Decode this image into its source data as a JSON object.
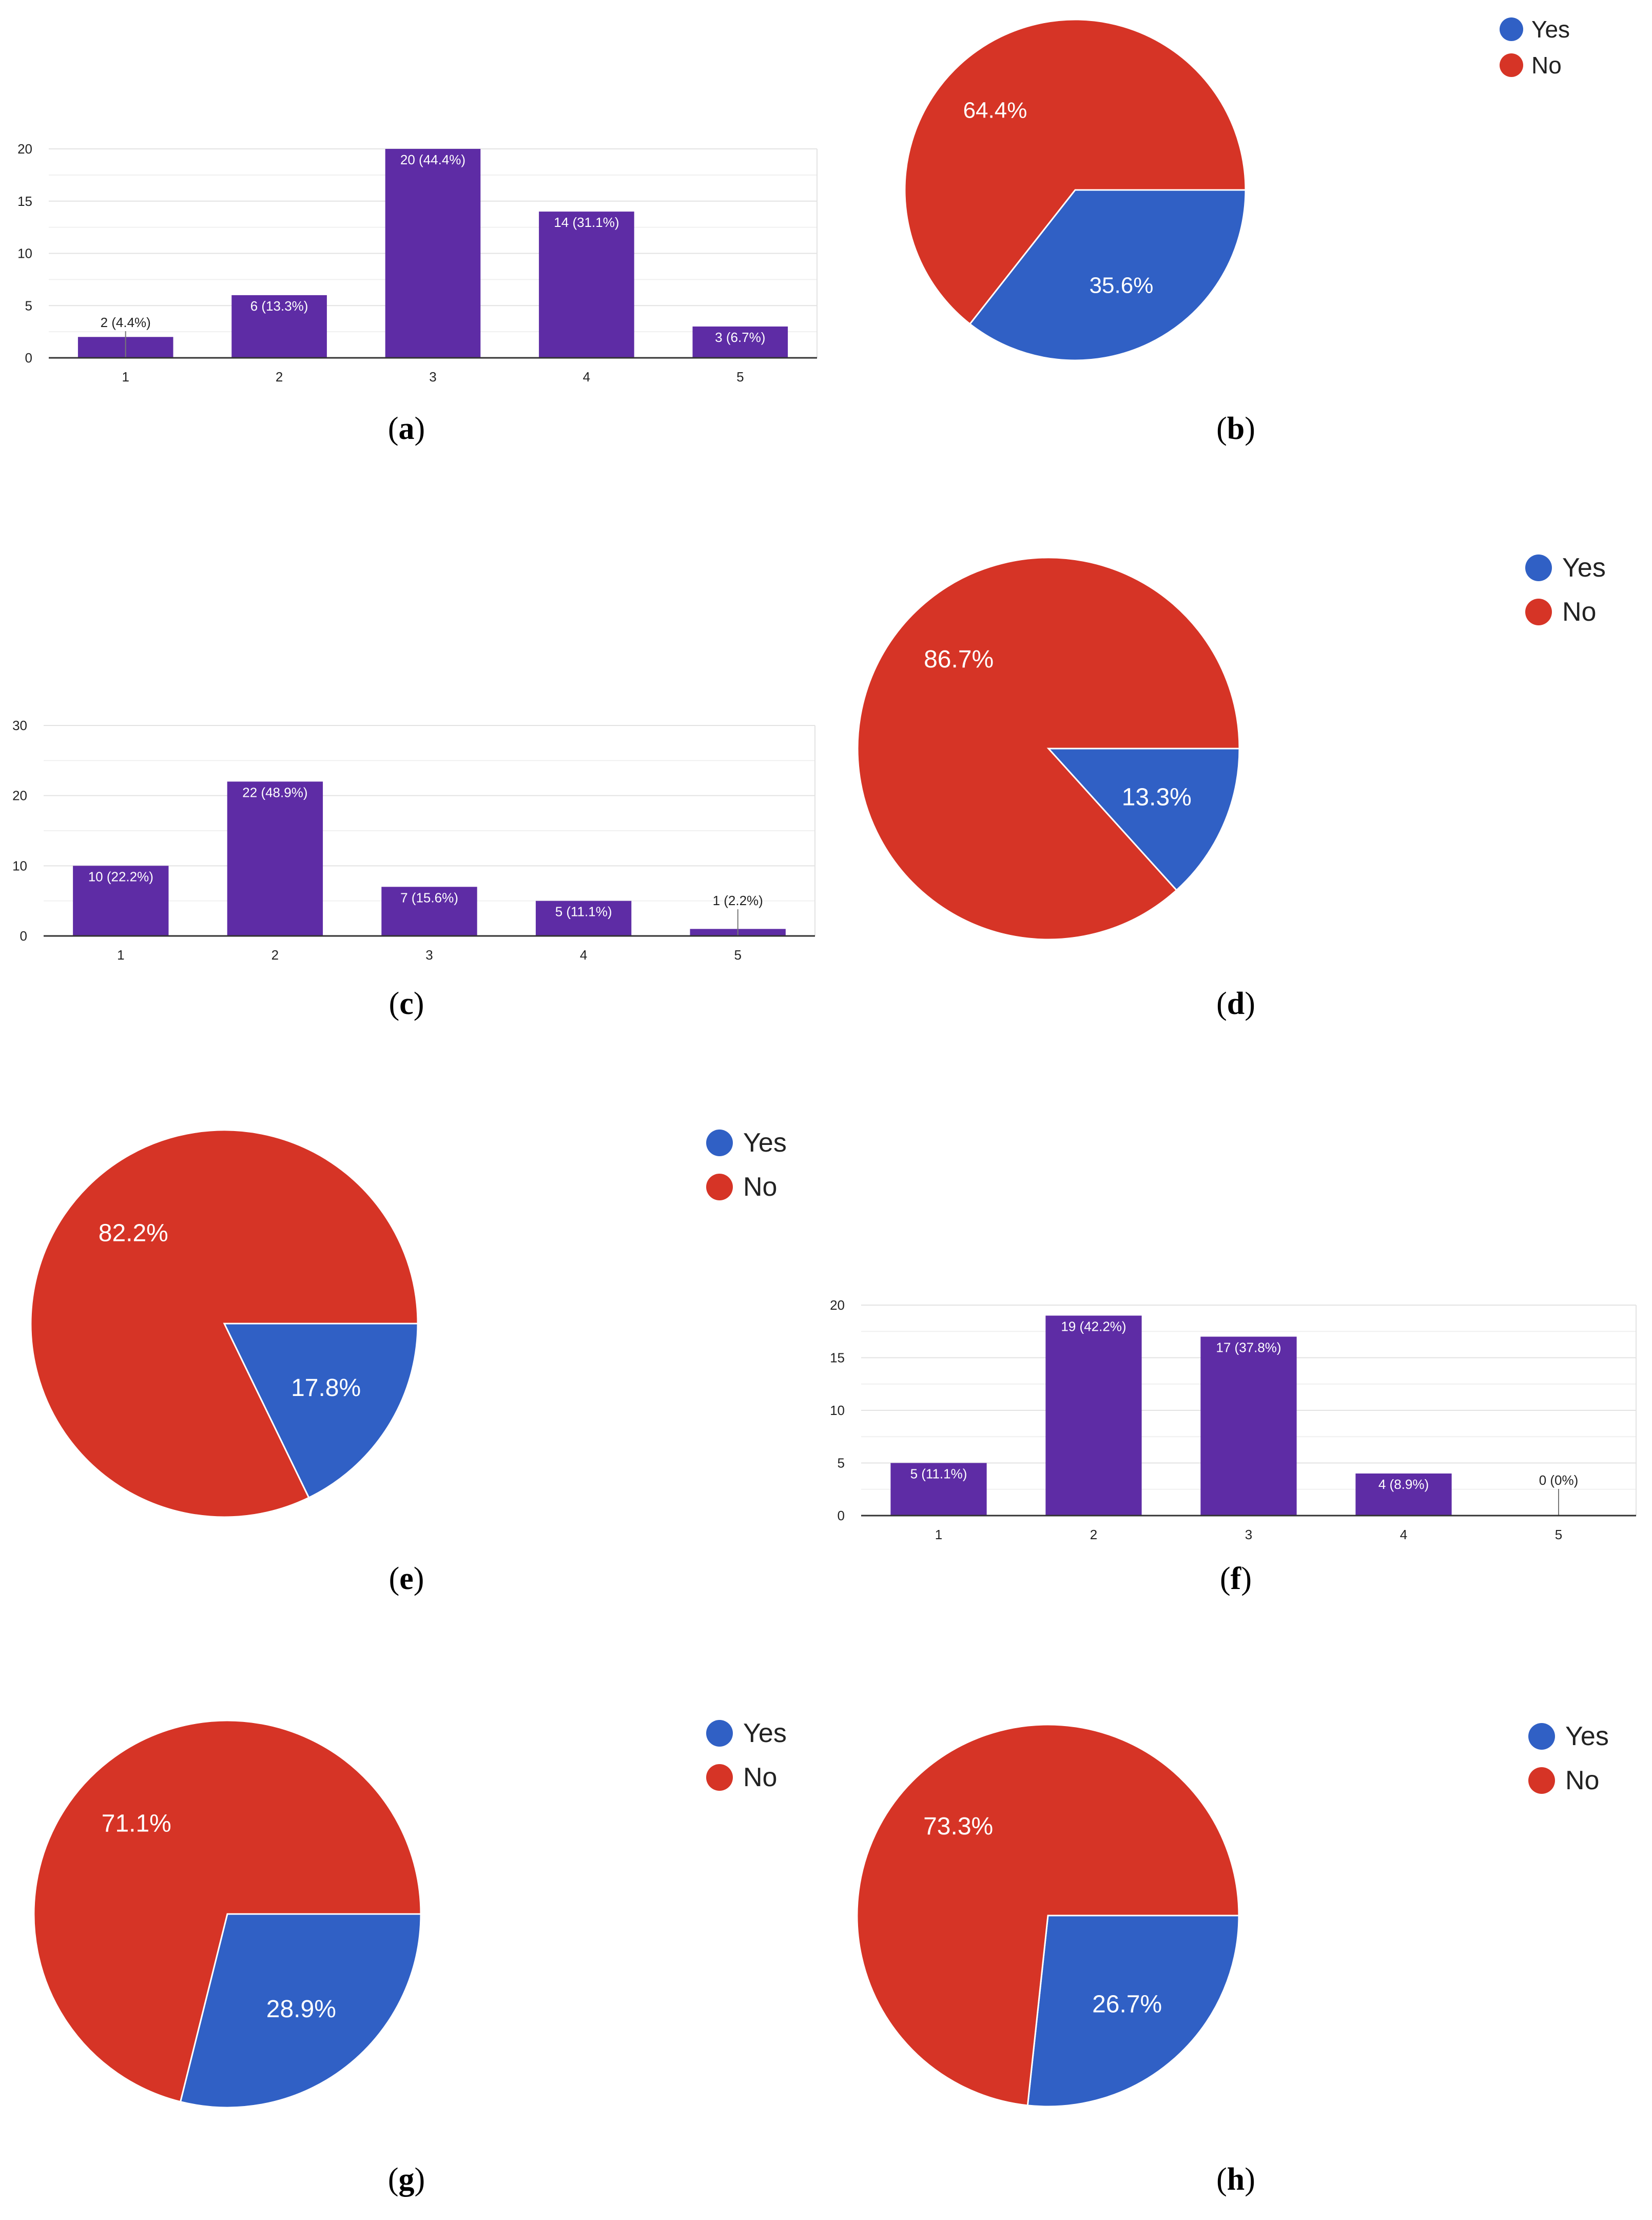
{
  "colors": {
    "bar": "#5e2ca5",
    "yes": "#3060c5",
    "no": "#d63426",
    "grid": "#e3e3e3",
    "axis": "#333333"
  },
  "chart_data": [
    {
      "id": "a",
      "type": "bar",
      "categories": [
        "1",
        "2",
        "3",
        "4",
        "5"
      ],
      "values": [
        2,
        6,
        20,
        14,
        3
      ],
      "data_labels": [
        "2 (4.4%)",
        "6 (13.3%)",
        "20 (44.4%)",
        "14 (31.1%)",
        "3 (6.7%)"
      ],
      "yticks": [
        0,
        5,
        10,
        15,
        20
      ],
      "ylim": [
        0,
        20
      ],
      "caption_letter": "a"
    },
    {
      "id": "b",
      "type": "pie",
      "labels": [
        "Yes",
        "No"
      ],
      "values": [
        35.6,
        64.4
      ],
      "slice_labels": [
        "35.6%",
        "64.4%"
      ],
      "legend": [
        "Yes",
        "No"
      ],
      "legend_position": "top-right",
      "caption_letter": "b"
    },
    {
      "id": "c",
      "type": "bar",
      "categories": [
        "1",
        "2",
        "3",
        "4",
        "5"
      ],
      "values": [
        10,
        22,
        7,
        5,
        1
      ],
      "data_labels": [
        "10 (22.2%)",
        "22 (48.9%)",
        "7 (15.6%)",
        "5 (11.1%)",
        "1 (2.2%)"
      ],
      "yticks": [
        0,
        10,
        20,
        30
      ],
      "ylim": [
        0,
        30
      ],
      "caption_letter": "c"
    },
    {
      "id": "d",
      "type": "pie",
      "labels": [
        "Yes",
        "No"
      ],
      "values": [
        13.3,
        86.7
      ],
      "slice_labels": [
        "13.3%",
        "86.7%"
      ],
      "legend": [
        "Yes",
        "No"
      ],
      "legend_position": "top-right",
      "caption_letter": "d"
    },
    {
      "id": "e",
      "type": "pie",
      "labels": [
        "Yes",
        "No"
      ],
      "values": [
        17.8,
        82.2
      ],
      "slice_labels": [
        "17.8%",
        "82.2%"
      ],
      "legend": [
        "Yes",
        "No"
      ],
      "legend_position": "top-right",
      "caption_letter": "e"
    },
    {
      "id": "f",
      "type": "bar",
      "categories": [
        "1",
        "2",
        "3",
        "4",
        "5"
      ],
      "values": [
        5,
        19,
        17,
        4,
        0
      ],
      "data_labels": [
        "5 (11.1%)",
        "19 (42.2%)",
        "17 (37.8%)",
        "4 (8.9%)",
        "0 (0%)"
      ],
      "yticks": [
        0,
        5,
        10,
        15,
        20
      ],
      "ylim": [
        0,
        20
      ],
      "caption_letter": "f"
    },
    {
      "id": "g",
      "type": "pie",
      "labels": [
        "Yes",
        "No"
      ],
      "values": [
        28.9,
        71.1
      ],
      "slice_labels": [
        "28.9%",
        "71.1%"
      ],
      "legend": [
        "Yes",
        "No"
      ],
      "legend_position": "top-right",
      "caption_letter": "g"
    },
    {
      "id": "h",
      "type": "pie",
      "labels": [
        "Yes",
        "No"
      ],
      "values": [
        26.7,
        73.3
      ],
      "slice_labels": [
        "26.7%",
        "73.3%"
      ],
      "legend": [
        "Yes",
        "No"
      ],
      "legend_position": "top-right",
      "caption_letter": "h"
    }
  ]
}
